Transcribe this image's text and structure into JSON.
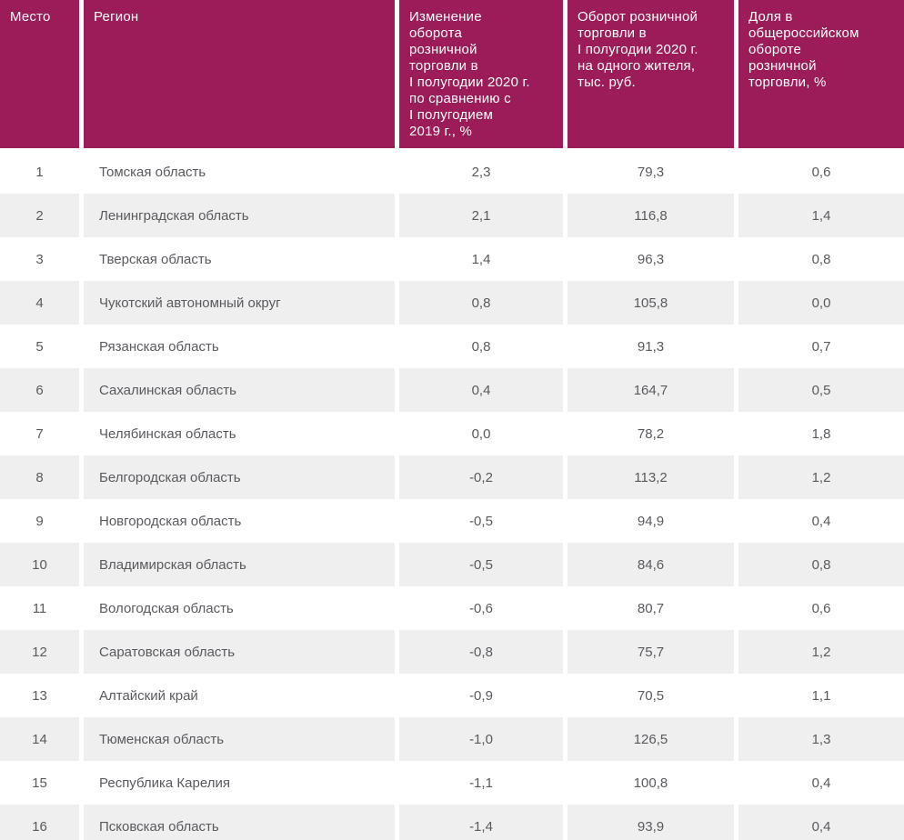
{
  "colors": {
    "header_bg": "#9B1C59",
    "header_text": "#FFFFFF",
    "row_alt_bg": "#EFEFEF",
    "row_base_bg": "#FFFFFF",
    "body_text": "#595A5E",
    "column_gap": "#FFFFFF"
  },
  "chart_data": {
    "type": "table",
    "title": "",
    "columns": [
      {
        "key": "place",
        "label": "Место"
      },
      {
        "key": "region",
        "label": "Регион"
      },
      {
        "key": "change",
        "label": "Изменение\nоборота\nрозничной\nторговли в\nI полугодии 2020 г.\nпо сравнению с\nI полугодием\n2019 г., %"
      },
      {
        "key": "turnover",
        "label": "Оборот розничной\nторговли в\nI полугодии 2020 г.\nна одного жителя,\nтыс. руб."
      },
      {
        "key": "share",
        "label": "Доля в\nобщероссийском\nобороте\nрозничной\nторговли, %"
      }
    ],
    "rows": [
      [
        "1",
        "Томская область",
        "2,3",
        "79,3",
        "0,6"
      ],
      [
        "2",
        "Ленинградская область",
        "2,1",
        "116,8",
        "1,4"
      ],
      [
        "3",
        "Тверская область",
        "1,4",
        "96,3",
        "0,8"
      ],
      [
        "4",
        "Чукотский автономный округ",
        "0,8",
        "105,8",
        "0,0"
      ],
      [
        "5",
        "Рязанская область",
        "0,8",
        "91,3",
        "0,7"
      ],
      [
        "6",
        "Сахалинская область",
        "0,4",
        "164,7",
        "0,5"
      ],
      [
        "7",
        "Челябинская область",
        "0,0",
        "78,2",
        "1,8"
      ],
      [
        "8",
        "Белгородская область",
        "-0,2",
        "113,2",
        "1,2"
      ],
      [
        "9",
        "Новгородская область",
        "-0,5",
        "94,9",
        "0,4"
      ],
      [
        "10",
        "Владимирская область",
        "-0,5",
        "84,6",
        "0,8"
      ],
      [
        "11",
        "Вологодская область",
        "-0,6",
        "80,7",
        "0,6"
      ],
      [
        "12",
        "Саратовская область",
        "-0,8",
        "75,7",
        "1,2"
      ],
      [
        "13",
        "Алтайский край",
        "-0,9",
        "70,5",
        "1,1"
      ],
      [
        "14",
        "Тюменская область",
        "-1,0",
        "126,5",
        "1,3"
      ],
      [
        "15",
        "Республика Карелия",
        "-1,1",
        "100,8",
        "0,4"
      ],
      [
        "16",
        "Псковская область",
        "-1,4",
        "93,9",
        "0,4"
      ]
    ]
  }
}
